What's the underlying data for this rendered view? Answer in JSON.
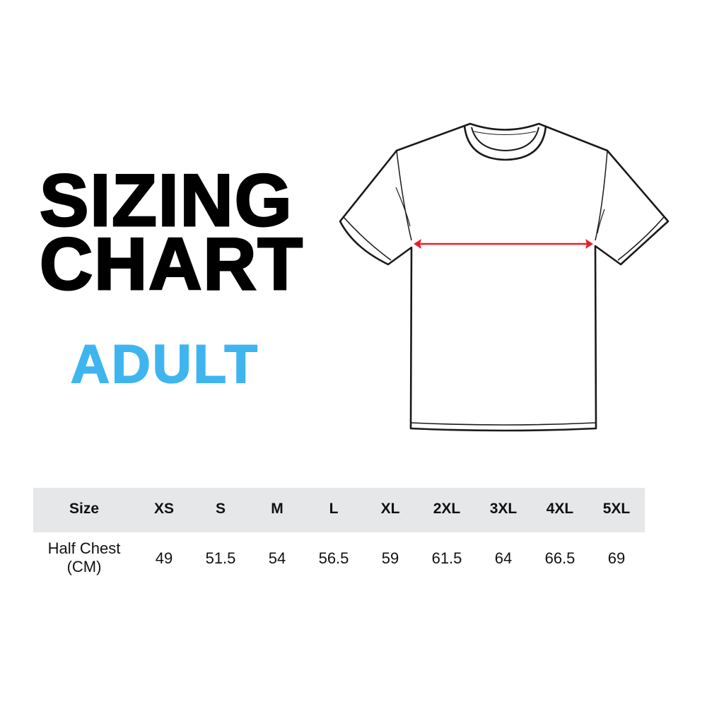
{
  "title_line1": "SIZING",
  "title_line2": "CHART",
  "subtitle": "ADULT",
  "colors": {
    "accent": "#3fb5f0",
    "arrow": "#e8202a",
    "header_bg": "#e6e7e8"
  },
  "illustration": {
    "type": "t-shirt-outline",
    "measurement": "half-chest-arrow"
  },
  "table": {
    "header_label": "Size",
    "sizes": [
      "XS",
      "S",
      "M",
      "L",
      "XL",
      "2XL",
      "3XL",
      "4XL",
      "5XL"
    ],
    "row_label_line1": "Half Chest",
    "row_label_line2": "(CM)",
    "values": [
      "49",
      "51.5",
      "54",
      "56.5",
      "59",
      "61.5",
      "64",
      "66.5",
      "69"
    ]
  }
}
